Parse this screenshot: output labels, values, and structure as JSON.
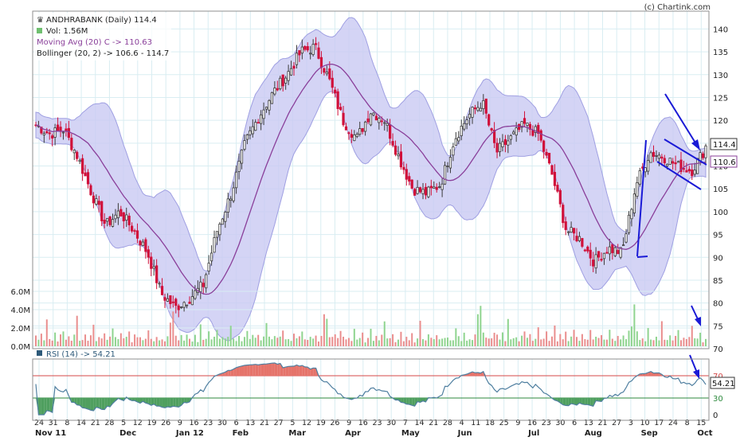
{
  "watermark": "(c) Chartink.com",
  "legend": {
    "title": "ANDHRABANK (Daily) 114.4",
    "vol": "Vol: 1.56M",
    "ma": "Moving Avg (20) C -> 110.63",
    "bb": "Bollinger (20, 2) -> 106.6 - 114.7"
  },
  "rsi_label": "RSI (14) -> 54.21",
  "colors": {
    "up": "#3a3a3a",
    "down": "#d0103a",
    "band_fill": "#c9c9f2",
    "band_edge": "#9f9fe2",
    "ma": "#8a3f9a",
    "vol_up": "#8fd48f",
    "vol_down": "#ea8e8e",
    "rsi_line": "#4f7fa0",
    "rsi_over": "#e5736a",
    "rsi_under": "#4f9f5f",
    "grid": "#d9edf2",
    "trend": "#1a1ad6"
  },
  "chart_data": {
    "type": "candlestick",
    "symbol": "ANDHRABANK",
    "interval": "Daily",
    "last_close": 114.4,
    "ma20_last": 110.63,
    "bollinger_last": [
      106.6,
      114.7
    ],
    "rsi_last": 54.21,
    "price_axis": {
      "ticks": [
        70,
        75,
        80,
        85,
        90,
        95,
        100,
        105,
        110,
        115,
        120,
        125,
        130,
        135,
        140
      ]
    },
    "volume_axis": {
      "ticks": [
        "0.0M",
        "2.0M",
        "4.0M",
        "6.0M"
      ],
      "max": 6.0
    },
    "rsi_axis": {
      "ticks": [
        0,
        30,
        70
      ],
      "bands": [
        30,
        70
      ]
    },
    "price_labels": [
      "114.4",
      "110.6"
    ],
    "rsi_value_label": "54.21",
    "x_ticks": [
      "24",
      "31",
      "8",
      "14",
      "21",
      "28",
      "5",
      "12",
      "19",
      "26",
      "9",
      "16",
      "23",
      "30",
      "6",
      "13",
      "21",
      "27",
      "5",
      "12",
      "19",
      "26",
      "9",
      "16",
      "23",
      "30",
      "7",
      "14",
      "21",
      "28",
      "4",
      "11",
      "18",
      "25",
      "9",
      "16",
      "23",
      "30",
      "6",
      "13",
      "21",
      "27",
      "3",
      "10",
      "17",
      "24",
      "8",
      "15"
    ],
    "month_labels": [
      "Nov 11",
      "Dec",
      "Jan 12",
      "Feb",
      "Mar",
      "Apr",
      "May",
      "Jun",
      "Jul",
      "Aug",
      "Sep",
      "Oct"
    ],
    "close_anchors": [
      119,
      117,
      118,
      112,
      104,
      97,
      100,
      96,
      91,
      82,
      79,
      81,
      84,
      96,
      104,
      115,
      121,
      126,
      130,
      135,
      136,
      129,
      120,
      116,
      122,
      120,
      112,
      105,
      104,
      106,
      116,
      121,
      124,
      113,
      116,
      119,
      117,
      108,
      96,
      94,
      89,
      92,
      91,
      106,
      113,
      112,
      110,
      109,
      114
    ],
    "volume_pattern_m": [
      1.2,
      0.8,
      1.4,
      0.6,
      2.8,
      1.1,
      0.9,
      1.6,
      0.7,
      1.3,
      2.1,
      0.9,
      1.5,
      0.8,
      1.2,
      3.1,
      1.0,
      0.9,
      1.7,
      0.6,
      1.1,
      2.4,
      0.8,
      1.3,
      0.9,
      1.6,
      0.7,
      1.2,
      2.6,
      1.0,
      0.8,
      1.4,
      0.9,
      1.1,
      1.8,
      0.7,
      1.3,
      0.9,
      1.5,
      0.8,
      1.0,
      2.2,
      1.2,
      0.7,
      1.4,
      0.9,
      1.1,
      0.8,
      1.6,
      3.5,
      4.5,
      1.5,
      1.0,
      1.3,
      0.9,
      2.0
    ]
  }
}
